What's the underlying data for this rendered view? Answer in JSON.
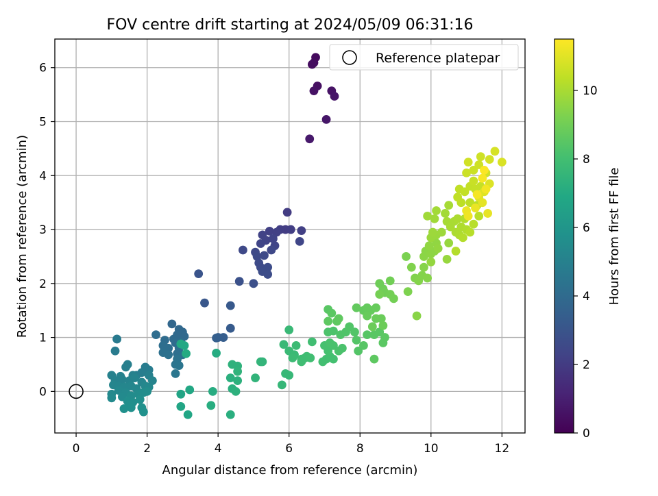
{
  "chart_data": {
    "type": "scatter",
    "title": "FOV centre drift starting at 2024/05/09 06:31:16",
    "xlabel": "Angular distance from reference (arcmin)",
    "ylabel": "Rotation from reference (arcmin)",
    "xlim": [
      -0.6,
      12.65
    ],
    "ylim": [
      -0.77,
      6.53
    ],
    "xticks": [
      0,
      2,
      4,
      6,
      8,
      10,
      12
    ],
    "yticks": [
      0,
      1,
      2,
      3,
      4,
      5,
      6
    ],
    "grid": true,
    "colormap": "viridis",
    "colorbar": {
      "label": "Hours from first FF file",
      "range": [
        0,
        11.5
      ],
      "ticks": [
        0,
        2,
        4,
        6,
        8,
        10
      ]
    },
    "legend": {
      "placement": "top-right",
      "entries": [
        "Reference platepar"
      ]
    },
    "reference_point": {
      "x": 0,
      "y": 0
    },
    "points": [
      [
        6.75,
        6.19,
        0.3
      ],
      [
        6.7,
        6.09,
        0.35
      ],
      [
        6.65,
        6.06,
        0.4
      ],
      [
        6.8,
        5.66,
        0.5
      ],
      [
        6.7,
        5.57,
        0.55
      ],
      [
        7.2,
        5.57,
        0.6
      ],
      [
        7.28,
        5.47,
        0.65
      ],
      [
        7.05,
        5.04,
        0.7
      ],
      [
        6.58,
        4.68,
        0.8
      ],
      [
        5.95,
        3.32,
        2.0
      ],
      [
        5.9,
        3.0,
        2.05
      ],
      [
        5.75,
        3.0,
        2.1
      ],
      [
        6.05,
        3.0,
        2.1
      ],
      [
        6.35,
        2.98,
        2.15
      ],
      [
        5.45,
        2.97,
        2.2
      ],
      [
        5.65,
        2.95,
        2.2
      ],
      [
        5.25,
        2.9,
        2.25
      ],
      [
        5.55,
        2.83,
        2.3
      ],
      [
        5.35,
        2.8,
        2.3
      ],
      [
        5.2,
        2.74,
        2.35
      ],
      [
        5.6,
        2.7,
        2.35
      ],
      [
        6.3,
        2.78,
        2.4
      ],
      [
        5.5,
        2.62,
        2.45
      ],
      [
        4.7,
        2.62,
        2.5
      ],
      [
        5.05,
        2.58,
        2.5
      ],
      [
        5.1,
        2.5,
        2.55
      ],
      [
        5.3,
        2.52,
        2.55
      ],
      [
        5.15,
        2.38,
        2.6
      ],
      [
        5.2,
        2.3,
        2.6
      ],
      [
        5.4,
        2.3,
        2.65
      ],
      [
        5.25,
        2.22,
        2.7
      ],
      [
        5.4,
        2.17,
        2.7
      ],
      [
        5.0,
        2.0,
        2.8
      ],
      [
        4.6,
        2.04,
        2.85
      ],
      [
        3.45,
        2.18,
        3.0
      ],
      [
        3.62,
        1.64,
        3.1
      ],
      [
        4.35,
        1.59,
        3.2
      ],
      [
        4.35,
        1.17,
        3.3
      ],
      [
        4.0,
        1.0,
        3.4
      ],
      [
        4.15,
        1.0,
        3.4
      ],
      [
        3.95,
        0.99,
        3.45
      ],
      [
        2.7,
        1.25,
        3.8
      ],
      [
        3.0,
        1.1,
        3.85
      ],
      [
        2.9,
        1.15,
        3.85
      ],
      [
        2.85,
        1.05,
        3.9
      ],
      [
        3.05,
        1.02,
        3.9
      ],
      [
        2.75,
        0.97,
        3.95
      ],
      [
        2.95,
        0.93,
        4.0
      ],
      [
        3.0,
        0.85,
        4.0
      ],
      [
        2.8,
        0.9,
        4.05
      ],
      [
        2.5,
        0.95,
        4.05
      ],
      [
        2.25,
        1.05,
        4.1
      ],
      [
        2.45,
        0.85,
        4.15
      ],
      [
        2.6,
        0.8,
        4.15
      ],
      [
        2.9,
        0.8,
        4.2
      ],
      [
        2.85,
        0.7,
        4.2
      ],
      [
        2.45,
        0.72,
        4.25
      ],
      [
        2.6,
        0.68,
        4.3
      ],
      [
        3.0,
        0.68,
        4.3
      ],
      [
        2.85,
        0.6,
        4.35
      ],
      [
        2.8,
        0.5,
        4.4
      ],
      [
        2.9,
        0.48,
        4.45
      ],
      [
        2.8,
        0.33,
        4.5
      ],
      [
        1.15,
        0.97,
        4.7
      ],
      [
        1.1,
        0.75,
        4.75
      ],
      [
        1.95,
        0.45,
        4.8
      ],
      [
        2.05,
        0.4,
        4.8
      ],
      [
        1.85,
        0.35,
        4.85
      ],
      [
        1.7,
        0.3,
        4.85
      ],
      [
        1.45,
        0.5,
        4.9
      ],
      [
        1.4,
        0.45,
        4.9
      ],
      [
        2.05,
        0.3,
        4.95
      ],
      [
        1.6,
        0.3,
        4.95
      ],
      [
        1.0,
        0.3,
        5.0
      ],
      [
        1.25,
        0.28,
        5.0
      ],
      [
        1.1,
        0.2,
        5.05
      ],
      [
        1.3,
        0.22,
        5.05
      ],
      [
        1.5,
        0.2,
        5.1
      ],
      [
        1.65,
        0.25,
        5.1
      ],
      [
        2.15,
        0.2,
        5.15
      ],
      [
        1.85,
        0.17,
        5.15
      ],
      [
        1.05,
        0.12,
        5.2
      ],
      [
        1.2,
        0.1,
        5.2
      ],
      [
        1.35,
        0.08,
        5.25
      ],
      [
        1.55,
        0.1,
        5.25
      ],
      [
        1.7,
        0.05,
        5.3
      ],
      [
        1.95,
        0.1,
        5.3
      ],
      [
        2.05,
        0.08,
        5.35
      ],
      [
        1.2,
        0.02,
        5.35
      ],
      [
        1.4,
        -0.02,
        5.4
      ],
      [
        1.0,
        -0.05,
        5.4
      ],
      [
        1.0,
        -0.12,
        5.45
      ],
      [
        1.3,
        -0.1,
        5.45
      ],
      [
        1.55,
        -0.08,
        5.5
      ],
      [
        1.75,
        -0.05,
        5.5
      ],
      [
        1.9,
        -0.02,
        5.55
      ],
      [
        2.0,
        0.0,
        5.55
      ],
      [
        1.45,
        -0.18,
        5.6
      ],
      [
        1.6,
        -0.2,
        5.6
      ],
      [
        1.8,
        -0.15,
        5.65
      ],
      [
        1.5,
        -0.25,
        5.65
      ],
      [
        1.55,
        -0.3,
        5.7
      ],
      [
        1.35,
        -0.32,
        5.7
      ],
      [
        1.85,
        -0.3,
        5.75
      ],
      [
        1.9,
        -0.38,
        5.75
      ],
      [
        2.95,
        -0.05,
        6.7
      ],
      [
        2.95,
        -0.28,
        6.75
      ],
      [
        3.15,
        -0.43,
        6.8
      ],
      [
        3.2,
        0.03,
        6.85
      ],
      [
        2.95,
        0.88,
        6.95
      ],
      [
        3.05,
        0.85,
        6.9
      ],
      [
        3.1,
        0.7,
        7.0
      ],
      [
        3.95,
        0.71,
        7.05
      ],
      [
        3.85,
        0.0,
        7.1
      ],
      [
        3.8,
        -0.26,
        7.15
      ],
      [
        4.35,
        -0.43,
        7.2
      ],
      [
        4.35,
        0.25,
        7.25
      ],
      [
        4.4,
        0.05,
        7.25
      ],
      [
        4.5,
        0.0,
        7.3
      ],
      [
        4.55,
        0.2,
        7.3
      ],
      [
        4.4,
        0.5,
        7.35
      ],
      [
        4.55,
        0.47,
        7.35
      ],
      [
        4.55,
        0.37,
        7.4
      ],
      [
        5.05,
        0.25,
        7.45
      ],
      [
        5.2,
        0.55,
        7.5
      ],
      [
        5.25,
        0.55,
        7.5
      ],
      [
        5.8,
        0.12,
        7.6
      ],
      [
        5.9,
        0.33,
        7.65
      ],
      [
        6.0,
        0.3,
        7.65
      ],
      [
        5.85,
        0.87,
        7.7
      ],
      [
        6.0,
        1.14,
        7.7
      ],
      [
        6.0,
        0.75,
        7.75
      ],
      [
        6.15,
        0.68,
        7.75
      ],
      [
        6.2,
        0.85,
        7.8
      ],
      [
        6.1,
        0.62,
        7.8
      ],
      [
        6.35,
        0.6,
        7.85
      ],
      [
        6.45,
        0.62,
        7.85
      ],
      [
        6.35,
        0.55,
        7.9
      ],
      [
        6.5,
        0.65,
        7.9
      ],
      [
        6.65,
        0.92,
        7.95
      ],
      [
        6.6,
        0.62,
        7.95
      ],
      [
        6.95,
        0.55,
        8.0
      ],
      [
        7.05,
        0.6,
        8.0
      ],
      [
        7.15,
        0.65,
        8.05
      ],
      [
        7.25,
        0.6,
        8.05
      ],
      [
        7.1,
        0.75,
        8.1
      ],
      [
        7.0,
        0.85,
        8.1
      ],
      [
        7.15,
        0.9,
        8.15
      ],
      [
        7.25,
        0.85,
        8.15
      ],
      [
        7.4,
        0.75,
        8.2
      ],
      [
        7.5,
        0.8,
        8.2
      ],
      [
        7.1,
        1.1,
        8.25
      ],
      [
        7.25,
        1.12,
        8.25
      ],
      [
        7.45,
        1.05,
        8.3
      ],
      [
        7.6,
        1.1,
        8.3
      ],
      [
        7.7,
        1.2,
        8.35
      ],
      [
        7.85,
        1.1,
        8.35
      ],
      [
        7.9,
        0.95,
        8.4
      ],
      [
        7.95,
        0.75,
        8.4
      ],
      [
        8.1,
        0.85,
        8.45
      ],
      [
        8.2,
        1.05,
        8.45
      ],
      [
        8.4,
        1.05,
        8.5
      ],
      [
        8.55,
        1.1,
        8.5
      ],
      [
        8.7,
        1.0,
        8.55
      ],
      [
        8.65,
        0.9,
        8.55
      ],
      [
        8.4,
        0.6,
        8.6
      ],
      [
        7.1,
        1.52,
        8.5
      ],
      [
        7.2,
        1.45,
        8.55
      ],
      [
        7.1,
        1.3,
        8.6
      ],
      [
        7.35,
        1.3,
        8.6
      ],
      [
        7.4,
        1.35,
        8.65
      ],
      [
        7.9,
        1.55,
        8.7
      ],
      [
        8.1,
        1.5,
        8.7
      ],
      [
        8.2,
        1.55,
        8.75
      ],
      [
        8.3,
        1.5,
        8.75
      ],
      [
        8.45,
        1.55,
        8.8
      ],
      [
        8.2,
        1.4,
        8.8
      ],
      [
        8.45,
        1.35,
        8.85
      ],
      [
        8.6,
        1.35,
        8.85
      ],
      [
        8.35,
        1.2,
        8.9
      ],
      [
        8.65,
        1.22,
        8.9
      ],
      [
        8.55,
        2.0,
        8.95
      ],
      [
        8.65,
        1.9,
        8.95
      ],
      [
        8.85,
        2.05,
        9.0
      ],
      [
        8.7,
        1.83,
        9.0
      ],
      [
        8.85,
        1.8,
        9.05
      ],
      [
        8.95,
        1.72,
        9.05
      ],
      [
        8.55,
        1.8,
        9.1
      ],
      [
        9.3,
        2.5,
        9.2
      ],
      [
        9.35,
        1.85,
        9.25
      ],
      [
        9.45,
        2.3,
        9.3
      ],
      [
        9.55,
        2.1,
        9.3
      ],
      [
        9.65,
        2.05,
        9.35
      ],
      [
        9.75,
        2.15,
        9.35
      ],
      [
        9.9,
        2.1,
        9.4
      ],
      [
        9.8,
        2.3,
        9.4
      ],
      [
        9.6,
        1.4,
        9.45
      ],
      [
        9.8,
        2.5,
        9.5
      ],
      [
        9.85,
        2.6,
        9.5
      ],
      [
        10.0,
        2.55,
        9.55
      ],
      [
        10.1,
        2.6,
        9.55
      ],
      [
        9.95,
        2.7,
        9.6
      ],
      [
        10.15,
        2.75,
        9.6
      ],
      [
        10.0,
        2.4,
        9.65
      ],
      [
        10.2,
        2.65,
        9.65
      ],
      [
        10.45,
        2.45,
        9.7
      ],
      [
        10.5,
        2.75,
        9.7
      ],
      [
        10.0,
        2.85,
        9.75
      ],
      [
        10.15,
        2.9,
        9.75
      ],
      [
        10.05,
        2.95,
        9.8
      ],
      [
        10.3,
        2.95,
        9.8
      ],
      [
        9.9,
        3.25,
        9.85
      ],
      [
        10.1,
        3.2,
        9.85
      ],
      [
        10.15,
        3.35,
        9.9
      ],
      [
        10.4,
        3.3,
        9.9
      ],
      [
        10.5,
        3.45,
        9.95
      ],
      [
        10.45,
        3.15,
        9.95
      ],
      [
        10.55,
        3.05,
        10.0
      ],
      [
        10.65,
        3.15,
        10.0
      ],
      [
        10.75,
        3.2,
        10.05
      ],
      [
        10.7,
        2.95,
        10.05
      ],
      [
        10.8,
        2.9,
        10.1
      ],
      [
        10.85,
        3.05,
        10.1
      ],
      [
        10.95,
        3.2,
        10.15
      ],
      [
        11.0,
        3.0,
        10.15
      ],
      [
        10.7,
        2.6,
        10.2
      ],
      [
        10.9,
        2.85,
        10.2
      ],
      [
        11.1,
        2.95,
        10.25
      ],
      [
        11.2,
        3.1,
        10.25
      ],
      [
        11.35,
        3.25,
        10.3
      ],
      [
        11.3,
        3.45,
        10.3
      ],
      [
        11.1,
        3.5,
        10.35
      ],
      [
        10.85,
        3.5,
        10.35
      ],
      [
        10.75,
        3.6,
        10.4
      ],
      [
        10.8,
        3.75,
        10.4
      ],
      [
        10.95,
        3.7,
        10.45
      ],
      [
        11.1,
        3.8,
        10.45
      ],
      [
        11.25,
        3.75,
        10.5
      ],
      [
        11.4,
        3.8,
        10.5
      ],
      [
        11.2,
        3.9,
        10.55
      ],
      [
        11.0,
        4.05,
        10.6
      ],
      [
        11.2,
        4.1,
        10.6
      ],
      [
        11.35,
        4.2,
        10.65
      ],
      [
        11.4,
        4.35,
        10.65
      ],
      [
        11.55,
        4.05,
        10.7
      ],
      [
        11.05,
        4.25,
        10.7
      ],
      [
        11.65,
        4.3,
        10.75
      ],
      [
        11.8,
        4.45,
        10.8
      ],
      [
        12.0,
        4.25,
        10.85
      ],
      [
        11.65,
        3.85,
        10.9
      ],
      [
        11.5,
        3.7,
        10.95
      ],
      [
        11.35,
        3.6,
        11.0
      ],
      [
        11.45,
        3.5,
        11.05
      ],
      [
        11.6,
        3.3,
        11.1
      ],
      [
        11.25,
        3.4,
        11.15
      ],
      [
        11.0,
        3.35,
        11.2
      ],
      [
        11.05,
        3.25,
        11.25
      ],
      [
        11.55,
        3.75,
        11.3
      ],
      [
        11.3,
        3.65,
        11.35
      ],
      [
        11.45,
        3.95,
        11.4
      ],
      [
        11.5,
        4.1,
        11.45
      ]
    ]
  }
}
